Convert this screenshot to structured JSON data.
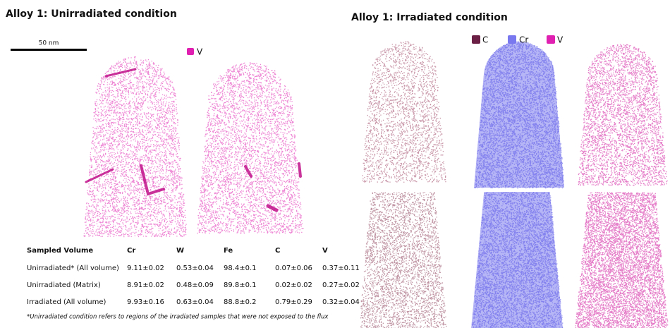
{
  "left": {
    "title": "Alloy 1: Unirradiated condition",
    "scale_bar": "50 nm",
    "legend": [
      "V"
    ]
  },
  "right": {
    "title": "Alloy 1: Irradiated condition",
    "legend": [
      "C",
      "Cr",
      "V"
    ]
  },
  "table": {
    "header": [
      "Sampled Volume",
      "Cr",
      "W",
      "Fe",
      "C",
      "V"
    ],
    "rows": [
      [
        "Unirradiated* (All volume)",
        "9.11±0.02",
        "0.53±0.04",
        "98.4±0.1",
        "0.07±0.06",
        "0.37±0.11"
      ],
      [
        "Unirradiated (Matrix)",
        "8.91±0.02",
        "0.48±0.09",
        "89.8±0.1",
        "0.02±0.02",
        "0.27±0.02"
      ],
      [
        "Irradiated (All volume)",
        "9.93±0.16",
        "0.63±0.04",
        "88.8±0.2",
        "0.79±0.29",
        "0.32±0.04"
      ]
    ]
  },
  "footnote": "*Unirradiated condition refers to regions of the irradiated samples that were not exposed to the flux"
}
